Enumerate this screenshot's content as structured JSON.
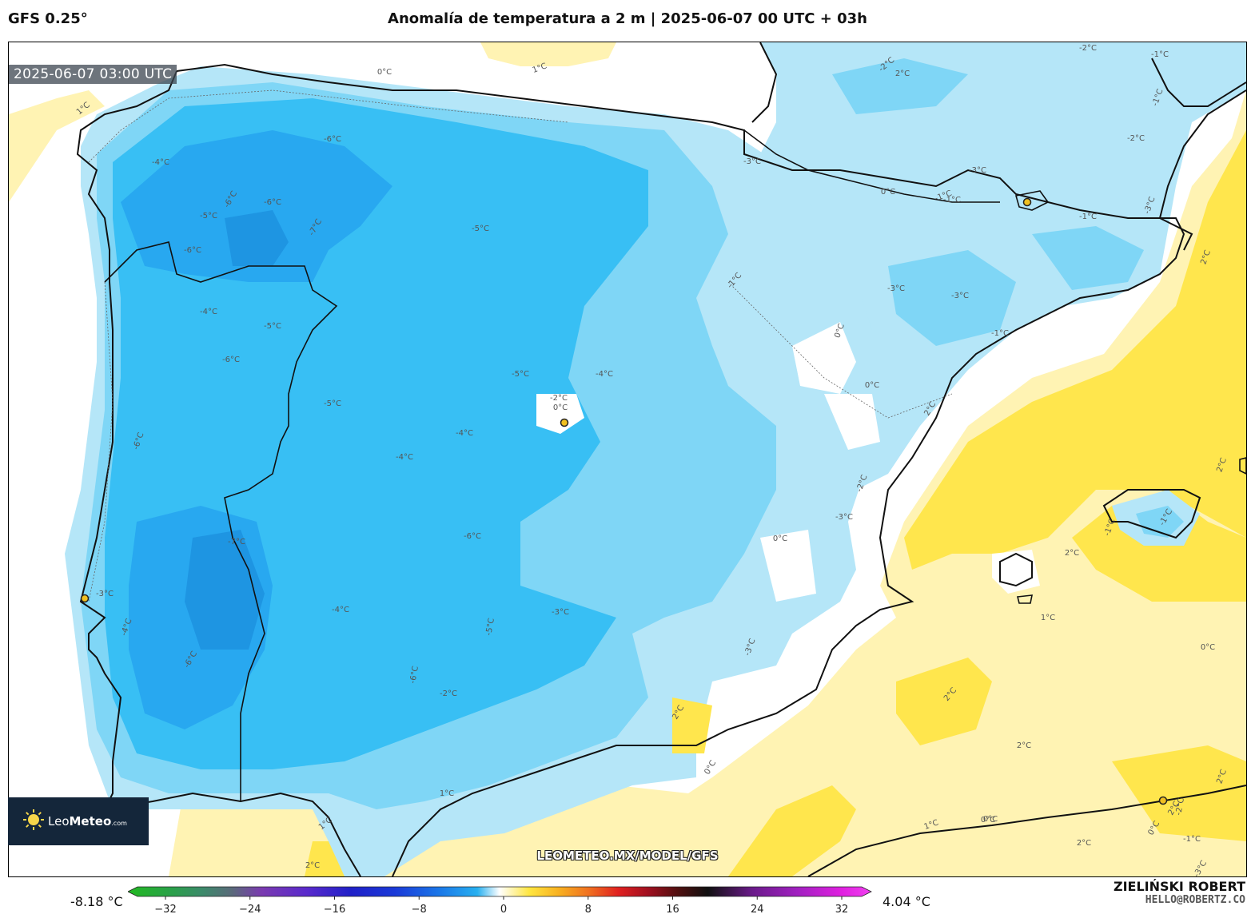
{
  "header": {
    "model": "GFS 0.25°",
    "title": "Anomalía de temperatura a 2 m | 2025-06-07 00 UTC + 03h"
  },
  "map": {
    "timestamp": "2025-06-07 03:00 UTC",
    "watermark": "LEOMETEO.MX/MODEL/GFS",
    "contour_labels": [
      "0°C",
      "1°C",
      "1°C",
      "-1°C",
      "-2°C",
      "2°C",
      "-2°C",
      "-1°C",
      "-4°C",
      "-6°C",
      "-3°C",
      "0°C",
      "-1°C",
      "-3°C",
      "-2°C",
      "-3°C",
      "-1°C",
      "2°C",
      "-6°C",
      "-5°C",
      "-6°C",
      "-7°C",
      "-6°C",
      "-5°C",
      "-4°C",
      "-5°C",
      "-6°C",
      "-1°C",
      "-3°C",
      "-3°C",
      "0°C",
      "-1°C",
      "2°C",
      "-5°C",
      "-4°C",
      "-2°C",
      "0°C",
      "0°C",
      "-2°C",
      "-5°C",
      "-6°C",
      "-4°C",
      "-4°C",
      "-3°C",
      "0°C",
      "2°C",
      "-3°C",
      "2°C",
      "-1°C",
      "-6°C",
      "-7°C",
      "-3°C",
      "-4°C",
      "-3°C",
      "-4°C",
      "-5°C",
      "-6°C",
      "-6°C",
      "-2°C",
      "-1°C",
      "0°C",
      "1°C",
      "2°C",
      "2°C",
      "1°C",
      "-2°C",
      "2°C",
      "1°C",
      "2°C",
      "0°C",
      "-1°C",
      "0°C",
      "-1°C",
      "1°C",
      "0°C",
      "2°C",
      "2°C",
      "2°C",
      "0°C",
      "-3°C"
    ]
  },
  "logo": {
    "brand_light": "Leo",
    "brand_bold": "Meteo",
    "suffix": ".com"
  },
  "colorbar": {
    "min_label": "-8.18 °C",
    "max_label": "4.04 °C",
    "ticks": [
      "−32",
      "−24",
      "−16",
      "−8",
      "0",
      "8",
      "16",
      "24",
      "32"
    ],
    "range": [
      -32,
      32
    ]
  },
  "author": {
    "name": "ZIELIŃSKI ROBERT",
    "email": "HELLO@ROBERTZ.CO"
  },
  "colors": {
    "strong_cold": "#28a8f0",
    "cold": "#38bff4",
    "cool": "#7fd6f6",
    "slight_cool": "#b5e6f8",
    "neutral": "#ffffff",
    "slight_warm": "#fff3b3",
    "warm": "#ffe64d",
    "very_warm": "#fad92a"
  }
}
